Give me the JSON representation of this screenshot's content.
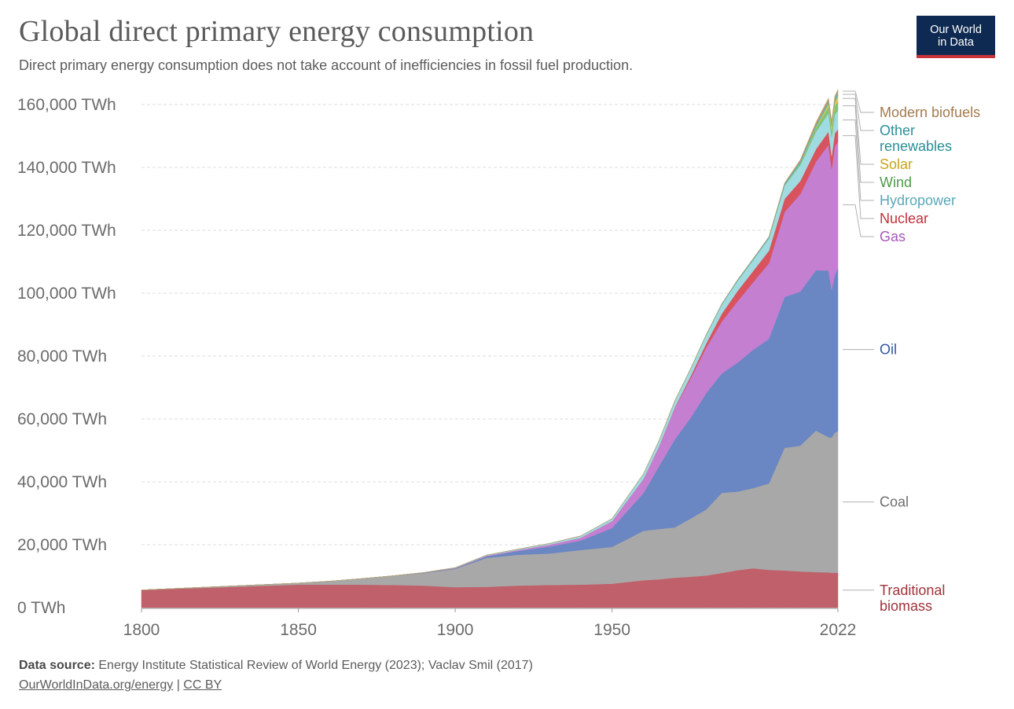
{
  "header": {
    "title": "Global direct primary energy consumption",
    "subtitle": "Direct primary energy consumption does not take account of inefficiencies in fossil fuel production."
  },
  "logo": {
    "line1": "Our World",
    "line2": "in Data"
  },
  "footer": {
    "source_label": "Data source:",
    "source_text": " Energy Institute Statistical Review of World Energy (2023); Vaclav Smil (2017)",
    "link1": "OurWorldInData.org/energy",
    "separator": " | ",
    "link2": "CC BY"
  },
  "chart_data": {
    "type": "area",
    "stacked": true,
    "title": "Global direct primary energy consumption",
    "ylim": [
      0,
      160000
    ],
    "yticks": [
      0,
      20000,
      40000,
      60000,
      80000,
      100000,
      120000,
      140000,
      160000
    ],
    "ytick_labels": [
      "0 TWh",
      "20,000 TWh",
      "40,000 TWh",
      "60,000 TWh",
      "80,000 TWh",
      "100,000 TWh",
      "120,000 TWh",
      "140,000 TWh",
      "160,000 TWh"
    ],
    "xlim": [
      1800,
      2022
    ],
    "xticks": [
      1800,
      1850,
      1900,
      1950,
      2022
    ],
    "xtick_labels": [
      "1800",
      "1850",
      "1900",
      "1950",
      "2022"
    ],
    "x": [
      1800,
      1850,
      1860,
      1870,
      1880,
      1890,
      1900,
      1910,
      1920,
      1930,
      1940,
      1950,
      1960,
      1965,
      1970,
      1975,
      1980,
      1985,
      1990,
      1995,
      2000,
      2005,
      2010,
      2015,
      2019,
      2020,
      2021,
      2022
    ],
    "series": [
      {
        "name": "Traditional biomass",
        "color": "#c0606a",
        "label_color": "#a0333c",
        "values": [
          5600,
          7300,
          7300,
          7300,
          7200,
          7000,
          6500,
          6600,
          7000,
          7200,
          7300,
          7600,
          8700,
          9000,
          9500,
          9800,
          10200,
          11000,
          11900,
          12500,
          12000,
          11800,
          11500,
          11300,
          11200,
          11100,
          11100,
          11100
        ]
      },
      {
        "name": "Coal",
        "color": "#a8a8a8",
        "label_color": "#6e6e6e",
        "values": [
          0,
          500,
          1100,
          1900,
          2900,
          4000,
          5800,
          9200,
          9800,
          10000,
          11000,
          11700,
          15700,
          16000,
          16000,
          18500,
          21000,
          25500,
          25000,
          25500,
          27500,
          39000,
          40000,
          45000,
          43000,
          43000,
          44500,
          45000
        ]
      },
      {
        "name": "Oil",
        "color": "#6a87c3",
        "label_color": "#2f56a0",
        "values": [
          0,
          0,
          0,
          0,
          0,
          100,
          200,
          500,
          1200,
          2200,
          3000,
          6000,
          12000,
          20000,
          28000,
          32000,
          37000,
          38000,
          41000,
          44000,
          46000,
          48000,
          49000,
          51000,
          53000,
          47000,
          50000,
          52000
        ]
      },
      {
        "name": "Gas",
        "color": "#c47fd1",
        "label_color": "#a657b8",
        "values": [
          0,
          0,
          0,
          0,
          0,
          50,
          100,
          200,
          300,
          600,
          900,
          2200,
          4500,
          6200,
          10000,
          12500,
          14500,
          16500,
          19500,
          21500,
          24000,
          27000,
          31000,
          34500,
          40000,
          38500,
          41000,
          40000
        ]
      },
      {
        "name": "Nuclear",
        "color": "#d9535e",
        "label_color": "#c42f3a",
        "values": [
          0,
          0,
          0,
          0,
          0,
          0,
          0,
          0,
          0,
          0,
          0,
          0,
          0,
          100,
          200,
          700,
          1300,
          2500,
          3300,
          3600,
          4000,
          4200,
          4200,
          4000,
          4200,
          4000,
          4200,
          4000
        ]
      },
      {
        "name": "Hydropower",
        "color": "#9fdbe0",
        "label_color": "#5aa8b8",
        "values": [
          0,
          0,
          0,
          0,
          0,
          0,
          100,
          200,
          300,
          400,
          600,
          800,
          1600,
          1800,
          2000,
          2300,
          2600,
          2900,
          3200,
          3500,
          3900,
          4200,
          5000,
          5500,
          5900,
          6000,
          6000,
          6000
        ]
      },
      {
        "name": "Wind",
        "color": "#7fc37a",
        "label_color": "#4f9a49",
        "values": [
          0,
          0,
          0,
          0,
          0,
          0,
          0,
          0,
          0,
          0,
          0,
          0,
          0,
          0,
          0,
          0,
          0,
          0,
          0,
          0,
          50,
          150,
          500,
          1200,
          1950,
          2200,
          2600,
          3000
        ]
      },
      {
        "name": "Solar",
        "color": "#e6c545",
        "label_color": "#c9a31a",
        "values": [
          0,
          0,
          0,
          0,
          0,
          0,
          0,
          0,
          0,
          0,
          0,
          0,
          0,
          0,
          0,
          0,
          0,
          0,
          0,
          0,
          0,
          0,
          50,
          350,
          1000,
          1200,
          1400,
          1700
        ]
      },
      {
        "name": "Other renewables",
        "color": "#4bb7c0",
        "label_color": "#2a8e9a",
        "values": [
          0,
          0,
          0,
          0,
          0,
          0,
          0,
          0,
          0,
          0,
          0,
          0,
          50,
          80,
          100,
          150,
          200,
          250,
          300,
          350,
          400,
          500,
          600,
          700,
          800,
          850,
          850,
          900
        ]
      },
      {
        "name": "Modern biofuels",
        "color": "#c49a6c",
        "label_color": "#a27a4e",
        "values": [
          0,
          0,
          0,
          0,
          0,
          0,
          0,
          0,
          0,
          0,
          0,
          0,
          0,
          0,
          0,
          0,
          0,
          50,
          100,
          120,
          150,
          250,
          600,
          800,
          1000,
          900,
          1000,
          1100
        ]
      }
    ],
    "legend_lines": {
      "Other renewables": [
        "Other",
        "renewables"
      ],
      "Traditional biomass": [
        "Traditional",
        "biomass"
      ]
    }
  }
}
